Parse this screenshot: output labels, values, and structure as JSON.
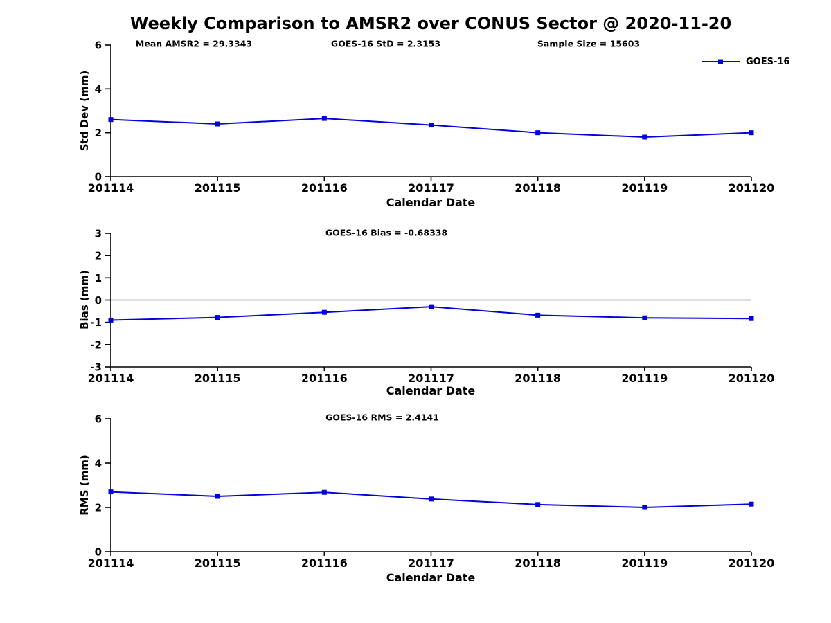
{
  "title": "Weekly Comparison to AMSR2 over CONUS Sector @ 2020-11-20",
  "legend": {
    "label": "GOES-16"
  },
  "colors": {
    "line": "#0000dd",
    "axis": "#000000"
  },
  "chart_data": [
    {
      "type": "line",
      "name": "std-dev-vs-date",
      "annotations": [
        "Mean AMSR2 = 29.3343",
        "GOES-16 StD = 2.3153",
        "Sample Size = 15603"
      ],
      "categories": [
        "201114",
        "201115",
        "201116",
        "201117",
        "201118",
        "201119",
        "201120"
      ],
      "series": [
        {
          "name": "GOES-16",
          "values": [
            2.6,
            2.4,
            2.65,
            2.35,
            2.0,
            1.8,
            2.0
          ]
        }
      ],
      "xlabel": "Calendar Date",
      "ylabel": "Std Dev (mm)",
      "ylim": [
        0,
        6
      ],
      "yticks": [
        0,
        2,
        4,
        6
      ],
      "zero_line": false,
      "legend_position": "top-right",
      "grid": false
    },
    {
      "type": "line",
      "name": "bias-vs-date",
      "annotations": [
        "GOES-16 Bias  = -0.68338"
      ],
      "categories": [
        "201114",
        "201115",
        "201116",
        "201117",
        "201118",
        "201119",
        "201120"
      ],
      "series": [
        {
          "name": "GOES-16",
          "values": [
            -0.9,
            -0.78,
            -0.55,
            -0.3,
            -0.68,
            -0.8,
            -0.83
          ]
        }
      ],
      "xlabel": "Calendar Date",
      "ylabel": "Bias (mm)",
      "ylim": [
        -3,
        3
      ],
      "yticks": [
        -3,
        -2,
        -1,
        0,
        1,
        2,
        3
      ],
      "zero_line": true,
      "grid": false
    },
    {
      "type": "line",
      "name": "rms-vs-date",
      "annotations": [
        "GOES-16 RMS = 2.4141"
      ],
      "categories": [
        "201114",
        "201115",
        "201116",
        "201117",
        "201118",
        "201119",
        "201120"
      ],
      "series": [
        {
          "name": "GOES-16",
          "values": [
            2.7,
            2.5,
            2.68,
            2.38,
            2.13,
            2.0,
            2.15
          ]
        }
      ],
      "xlabel": "Calendar Date",
      "ylabel": "RMS (mm)",
      "ylim": [
        0,
        6
      ],
      "yticks": [
        0,
        2,
        4,
        6
      ],
      "zero_line": false,
      "grid": false
    }
  ]
}
